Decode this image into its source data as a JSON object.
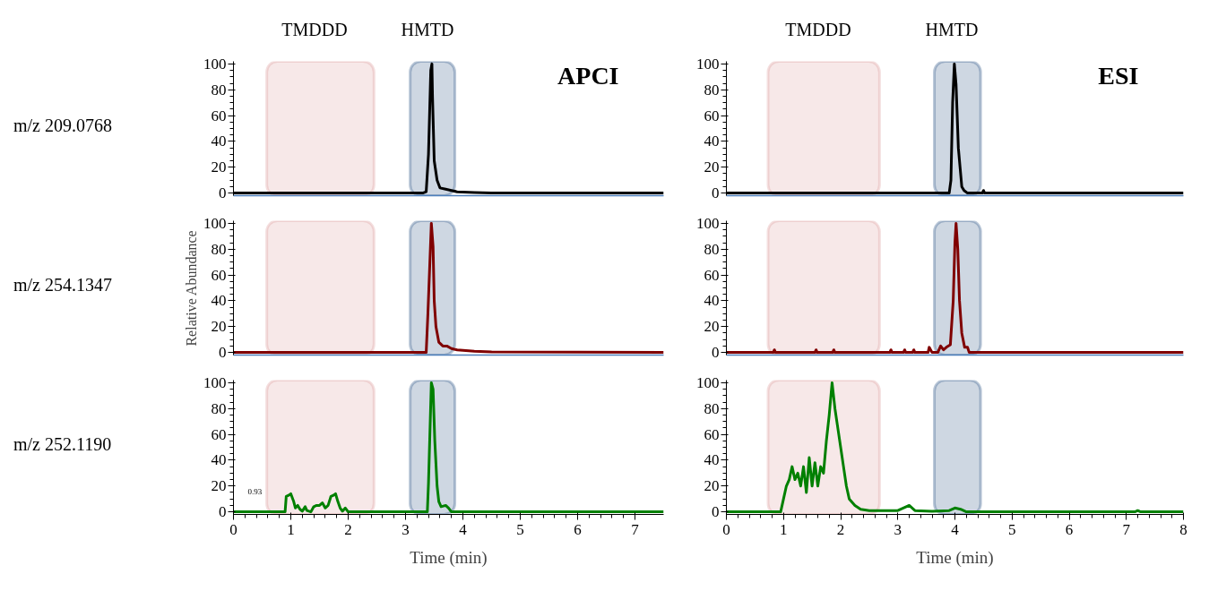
{
  "chart_data": [
    {
      "type": "line",
      "title": "APCI",
      "annotations": [
        "m/z 209.0768"
      ],
      "xlim": [
        0,
        7.5
      ],
      "ylim": [
        -2,
        102
      ],
      "yticks": [
        0,
        20,
        40,
        60,
        80,
        100
      ],
      "tick_labels": "y",
      "bands": [
        {
          "axis": "x",
          "from": 0.58,
          "to": 2.45,
          "label": "TMDDD",
          "color": "#d99594"
        },
        {
          "axis": "x",
          "from": 3.08,
          "to": 3.86,
          "label": "HMTD",
          "color": "#1f497d"
        }
      ],
      "series": [
        {
          "color": "#000000",
          "x": [
            0,
            3.3,
            3.36,
            3.4,
            3.44,
            3.46,
            3.47,
            3.5,
            3.55,
            3.6,
            3.7,
            3.8,
            3.9,
            4.2,
            4.5,
            7.5
          ],
          "values": [
            0,
            0,
            1,
            30,
            95,
            100,
            75,
            25,
            10,
            4,
            3,
            2,
            1,
            0.5,
            0,
            0
          ]
        }
      ]
    },
    {
      "type": "line",
      "title": "ESI",
      "xlim": [
        0,
        8
      ],
      "ylim": [
        -2,
        102
      ],
      "yticks": [
        0,
        20,
        40,
        60,
        80,
        100
      ],
      "tick_labels": "y",
      "bands": [
        {
          "axis": "x",
          "from": 0.73,
          "to": 2.68,
          "label": "TMDDD",
          "color": "#d99594"
        },
        {
          "axis": "x",
          "from": 3.64,
          "to": 4.45,
          "label": "HMTD",
          "color": "#1f497d"
        }
      ],
      "series": [
        {
          "color": "#000000",
          "x": [
            0,
            3.9,
            3.93,
            3.96,
            3.99,
            4.02,
            4.04,
            4.06,
            4.09,
            4.12,
            4.16,
            4.22,
            4.48,
            4.5,
            4.52,
            8
          ],
          "values": [
            0,
            0,
            10,
            70,
            100,
            84,
            60,
            35,
            20,
            5,
            2,
            0,
            0,
            2,
            0,
            0
          ]
        }
      ]
    },
    {
      "type": "line",
      "annotations": [
        "m/z 254.1347"
      ],
      "ylabel": "Relative Abundance",
      "xlim": [
        0,
        7.5
      ],
      "ylim": [
        -2,
        102
      ],
      "yticks": [
        0,
        20,
        40,
        60,
        80,
        100
      ],
      "tick_labels": "y",
      "bands": [
        {
          "axis": "x",
          "from": 0.58,
          "to": 2.45,
          "color": "#d99594"
        },
        {
          "axis": "x",
          "from": 3.08,
          "to": 3.86,
          "color": "#1f497d"
        }
      ],
      "series": [
        {
          "color": "#800000",
          "x": [
            0,
            3.36,
            3.39,
            3.45,
            3.48,
            3.5,
            3.53,
            3.58,
            3.65,
            3.72,
            3.8,
            3.9,
            4.2,
            4.5,
            7.5
          ],
          "values": [
            0,
            0,
            30,
            100,
            82,
            40,
            20,
            8,
            5,
            5,
            3,
            2,
            1,
            0.5,
            0
          ]
        }
      ]
    },
    {
      "type": "line",
      "xlim": [
        0,
        8
      ],
      "ylim": [
        -2,
        102
      ],
      "yticks": [
        0,
        20,
        40,
        60,
        80,
        100
      ],
      "tick_labels": "y",
      "bands": [
        {
          "axis": "x",
          "from": 0.73,
          "to": 2.68,
          "color": "#d99594"
        },
        {
          "axis": "x",
          "from": 3.64,
          "to": 4.45,
          "color": "#1f497d"
        }
      ],
      "series": [
        {
          "color": "#800000",
          "x": [
            0,
            0.82,
            0.84,
            0.86,
            1.55,
            1.57,
            1.59,
            1.86,
            1.88,
            1.9,
            2.86,
            2.88,
            2.9,
            3.1,
            3.12,
            3.14,
            3.26,
            3.28,
            3.3,
            3.53,
            3.55,
            3.6,
            3.7,
            3.75,
            3.8,
            3.85,
            3.92,
            3.97,
            4.0,
            4.02,
            4.05,
            4.08,
            4.12,
            4.17,
            4.22,
            4.25,
            8
          ],
          "values": [
            0,
            0,
            2,
            0,
            0,
            2,
            0,
            0,
            2,
            0,
            0,
            2,
            0,
            0,
            2,
            0,
            0,
            2,
            0,
            0,
            4,
            0,
            0,
            5,
            2,
            4,
            6,
            40,
            85,
            100,
            80,
            40,
            15,
            4,
            4,
            0,
            0
          ]
        }
      ]
    },
    {
      "type": "line",
      "annotations": [
        "m/z 252.1190",
        "0.93"
      ],
      "xlabel": "Time (min)",
      "xlim": [
        0,
        7.5
      ],
      "ylim": [
        -2,
        102
      ],
      "xticks": [
        0,
        1,
        2,
        3,
        4,
        5,
        6,
        7
      ],
      "yticks": [
        0,
        20,
        40,
        60,
        80,
        100
      ],
      "bands": [
        {
          "axis": "x",
          "from": 0.58,
          "to": 2.45,
          "color": "#d99594"
        },
        {
          "axis": "x",
          "from": 3.08,
          "to": 3.86,
          "color": "#1f497d"
        }
      ],
      "series": [
        {
          "color": "#008000",
          "x": [
            0,
            0.9,
            0.92,
            0.97,
            1.0,
            1.05,
            1.08,
            1.12,
            1.16,
            1.2,
            1.25,
            1.28,
            1.35,
            1.4,
            1.45,
            1.5,
            1.55,
            1.6,
            1.65,
            1.7,
            1.75,
            1.78,
            1.82,
            1.86,
            1.9,
            1.95,
            2.0,
            3.38,
            3.4,
            3.45,
            3.48,
            3.51,
            3.55,
            3.58,
            3.62,
            3.7,
            3.75,
            3.8,
            7.5
          ],
          "values": [
            0,
            0,
            12,
            13,
            14,
            8,
            3,
            5,
            2,
            0.5,
            4,
            1,
            0,
            4,
            5,
            5,
            7,
            3,
            5,
            12,
            13,
            14,
            8,
            3,
            0.5,
            3,
            0,
            0,
            22,
            100,
            95,
            55,
            20,
            8,
            4,
            5,
            3,
            0,
            0
          ]
        }
      ]
    },
    {
      "type": "line",
      "xlabel": "Time (min)",
      "xlim": [
        0,
        8
      ],
      "ylim": [
        -2,
        102
      ],
      "xticks": [
        0,
        1,
        2,
        3,
        4,
        5,
        6,
        7,
        8
      ],
      "yticks": [
        0,
        20,
        40,
        60,
        80,
        100
      ],
      "bands": [
        {
          "axis": "x",
          "from": 0.73,
          "to": 2.68,
          "color": "#d99594"
        },
        {
          "axis": "x",
          "from": 3.64,
          "to": 4.45,
          "color": "#1f497d"
        }
      ],
      "series": [
        {
          "color": "#008000",
          "x": [
            0,
            0.95,
            1.0,
            1.05,
            1.1,
            1.15,
            1.2,
            1.25,
            1.3,
            1.35,
            1.4,
            1.45,
            1.5,
            1.55,
            1.6,
            1.65,
            1.7,
            1.75,
            1.8,
            1.85,
            1.9,
            1.95,
            2.0,
            2.05,
            2.1,
            2.15,
            2.25,
            2.35,
            2.5,
            2.7,
            3.0,
            3.2,
            3.3,
            3.6,
            3.9,
            4.0,
            4.1,
            4.2,
            7.15,
            7.2,
            7.25,
            8
          ],
          "values": [
            0,
            0,
            10,
            20,
            25,
            35,
            25,
            30,
            20,
            35,
            15,
            42,
            20,
            38,
            20,
            35,
            30,
            55,
            75,
            100,
            80,
            65,
            50,
            35,
            20,
            10,
            5,
            2,
            1,
            1,
            1,
            5,
            1,
            0.5,
            1,
            3,
            2,
            0,
            0,
            1,
            0,
            0
          ]
        }
      ]
    }
  ]
}
